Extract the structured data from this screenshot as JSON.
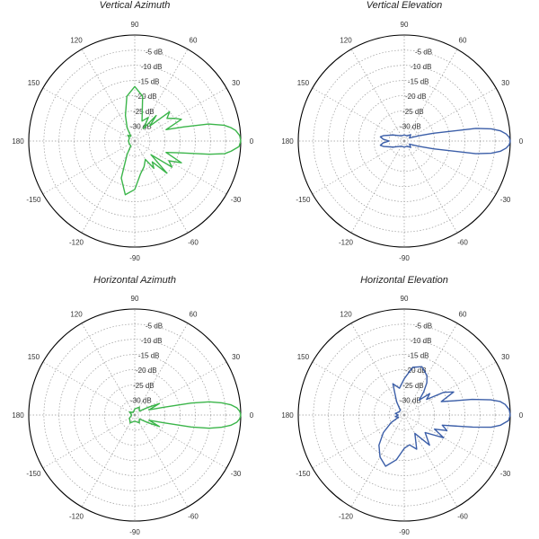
{
  "chart_data": [
    {
      "type": "polar",
      "title": "Vertical Azimuth",
      "color": "#3bb54a",
      "angle_ticks": [
        "0",
        "30",
        "60",
        "90",
        "120",
        "150",
        "180",
        "-150",
        "-120",
        "-90",
        "-60",
        "-30"
      ],
      "db_ticks": [
        "-5 dB",
        "-10 dB",
        "-15 dB",
        "-20 dB",
        "-25 dB",
        "-30 dB"
      ],
      "r_range_db": [
        -35,
        0
      ],
      "grid": true,
      "series": [
        {
          "angles_deg": [
            0,
            3,
            6,
            8,
            10,
            13,
            16,
            20,
            25,
            30,
            35,
            40,
            45,
            50,
            55,
            60,
            70,
            80,
            90,
            100,
            110,
            120,
            130,
            140,
            150,
            160,
            170,
            180,
            190,
            200,
            210,
            220,
            230,
            240,
            250,
            260,
            270,
            280,
            290,
            300,
            305,
            310,
            315,
            320,
            325,
            330,
            335,
            340,
            345,
            350,
            352,
            354,
            357
          ],
          "gain_db": [
            0,
            -0.3,
            -1.5,
            -3,
            -5,
            -10,
            -18,
            -24,
            -18,
            -20,
            -22,
            -20,
            -28,
            -24,
            -30,
            -26,
            -28,
            -20,
            -17,
            -20,
            -26,
            -30,
            -33,
            -32,
            -33,
            -33,
            -33,
            -33,
            -33,
            -33,
            -33,
            -33,
            -33,
            -30,
            -22,
            -17,
            -19,
            -24,
            -26,
            -28,
            -24,
            -26,
            -20,
            -28,
            -20,
            -22,
            -18,
            -24,
            -20,
            -10,
            -5,
            -3,
            -0.5
          ]
        }
      ]
    },
    {
      "type": "polar",
      "title": "Vertical Elevation",
      "color": "#3b5ea8",
      "angle_ticks": [
        "0",
        "30",
        "60",
        "90",
        "120",
        "150",
        "180",
        "-150",
        "-120",
        "-90",
        "-60",
        "-30"
      ],
      "db_ticks": [
        "-5 dB",
        "-10 dB",
        "-15 dB",
        "-20 dB",
        "-25 dB",
        "-30 dB"
      ],
      "r_range_db": [
        -35,
        0
      ],
      "grid": true,
      "series": [
        {
          "angles_deg": [
            0,
            2,
            4,
            6,
            8,
            10,
            15,
            20,
            30,
            45,
            60,
            90,
            120,
            150,
            165,
            170,
            175,
            180,
            185,
            190,
            195,
            210,
            240,
            270,
            300,
            315,
            330,
            340,
            345,
            350,
            352,
            354,
            356,
            358
          ],
          "gain_db": [
            0,
            -0.3,
            -1.3,
            -3,
            -6,
            -11,
            -25,
            -30,
            -33,
            -32,
            -33,
            -33,
            -33,
            -31,
            -28,
            -27,
            -28,
            -30,
            -28,
            -27,
            -28,
            -31,
            -33,
            -33,
            -33,
            -32,
            -33,
            -30,
            -25,
            -11,
            -6,
            -3,
            -1.3,
            -0.3
          ]
        }
      ]
    },
    {
      "type": "polar",
      "title": "Horizontal Azimuth",
      "color": "#3bb54a",
      "angle_ticks": [
        "0",
        "30",
        "60",
        "90",
        "120",
        "150",
        "180",
        "-150",
        "-120",
        "-90",
        "-60",
        "-30"
      ],
      "db_ticks": [
        "-5 dB",
        "-10 dB",
        "-15 dB",
        "-20 dB",
        "-25 dB",
        "-30 dB"
      ],
      "r_range_db": [
        -35,
        0
      ],
      "grid": true,
      "series": [
        {
          "angles_deg": [
            0,
            2,
            4,
            6,
            8,
            10,
            12,
            15,
            20,
            25,
            30,
            40,
            60,
            90,
            120,
            150,
            180,
            210,
            240,
            270,
            300,
            320,
            330,
            335,
            340,
            345,
            348,
            350,
            352,
            354,
            356,
            358
          ],
          "gain_db": [
            0,
            -0.3,
            -1.2,
            -3,
            -6,
            -10,
            -16,
            -25,
            -30,
            -26,
            -30,
            -33,
            -32,
            -33,
            -34,
            -33,
            -34,
            -33,
            -32,
            -33,
            -32,
            -33,
            -30,
            -26,
            -30,
            -25,
            -16,
            -10,
            -6,
            -3,
            -1.2,
            -0.3
          ]
        }
      ]
    },
    {
      "type": "polar",
      "title": "Horizontal Elevation",
      "color": "#3b5ea8",
      "angle_ticks": [
        "0",
        "30",
        "60",
        "90",
        "120",
        "150",
        "180",
        "-150",
        "-120",
        "-90",
        "-60",
        "-30"
      ],
      "db_ticks": [
        "-5 dB",
        "-10 dB",
        "-15 dB",
        "-20 dB",
        "-25 dB",
        "-30 dB"
      ],
      "r_range_db": [
        -35,
        0
      ],
      "grid": true,
      "series": [
        {
          "angles_deg": [
            0,
            3,
            6,
            8,
            10,
            13,
            16,
            20,
            25,
            30,
            35,
            40,
            45,
            50,
            55,
            60,
            70,
            80,
            90,
            100,
            110,
            120,
            130,
            150,
            170,
            180,
            190,
            200,
            210,
            220,
            230,
            240,
            250,
            260,
            270,
            280,
            290,
            300,
            310,
            320,
            330,
            335,
            340,
            345,
            350,
            352,
            354,
            357
          ],
          "gain_db": [
            0,
            -0.3,
            -1.5,
            -3,
            -6,
            -12,
            -18,
            -22,
            -17,
            -20,
            -26,
            -24,
            -28,
            -25,
            -22,
            -20,
            -18,
            -19,
            -23,
            -26,
            -24,
            -30,
            -33,
            -33,
            -32,
            -33,
            -32,
            -33,
            -30,
            -26,
            -22,
            -19,
            -17,
            -20,
            -24,
            -25,
            -23,
            -28,
            -22,
            -26,
            -20,
            -24,
            -20,
            -22,
            -12,
            -6,
            -3,
            -0.5
          ]
        }
      ]
    }
  ]
}
